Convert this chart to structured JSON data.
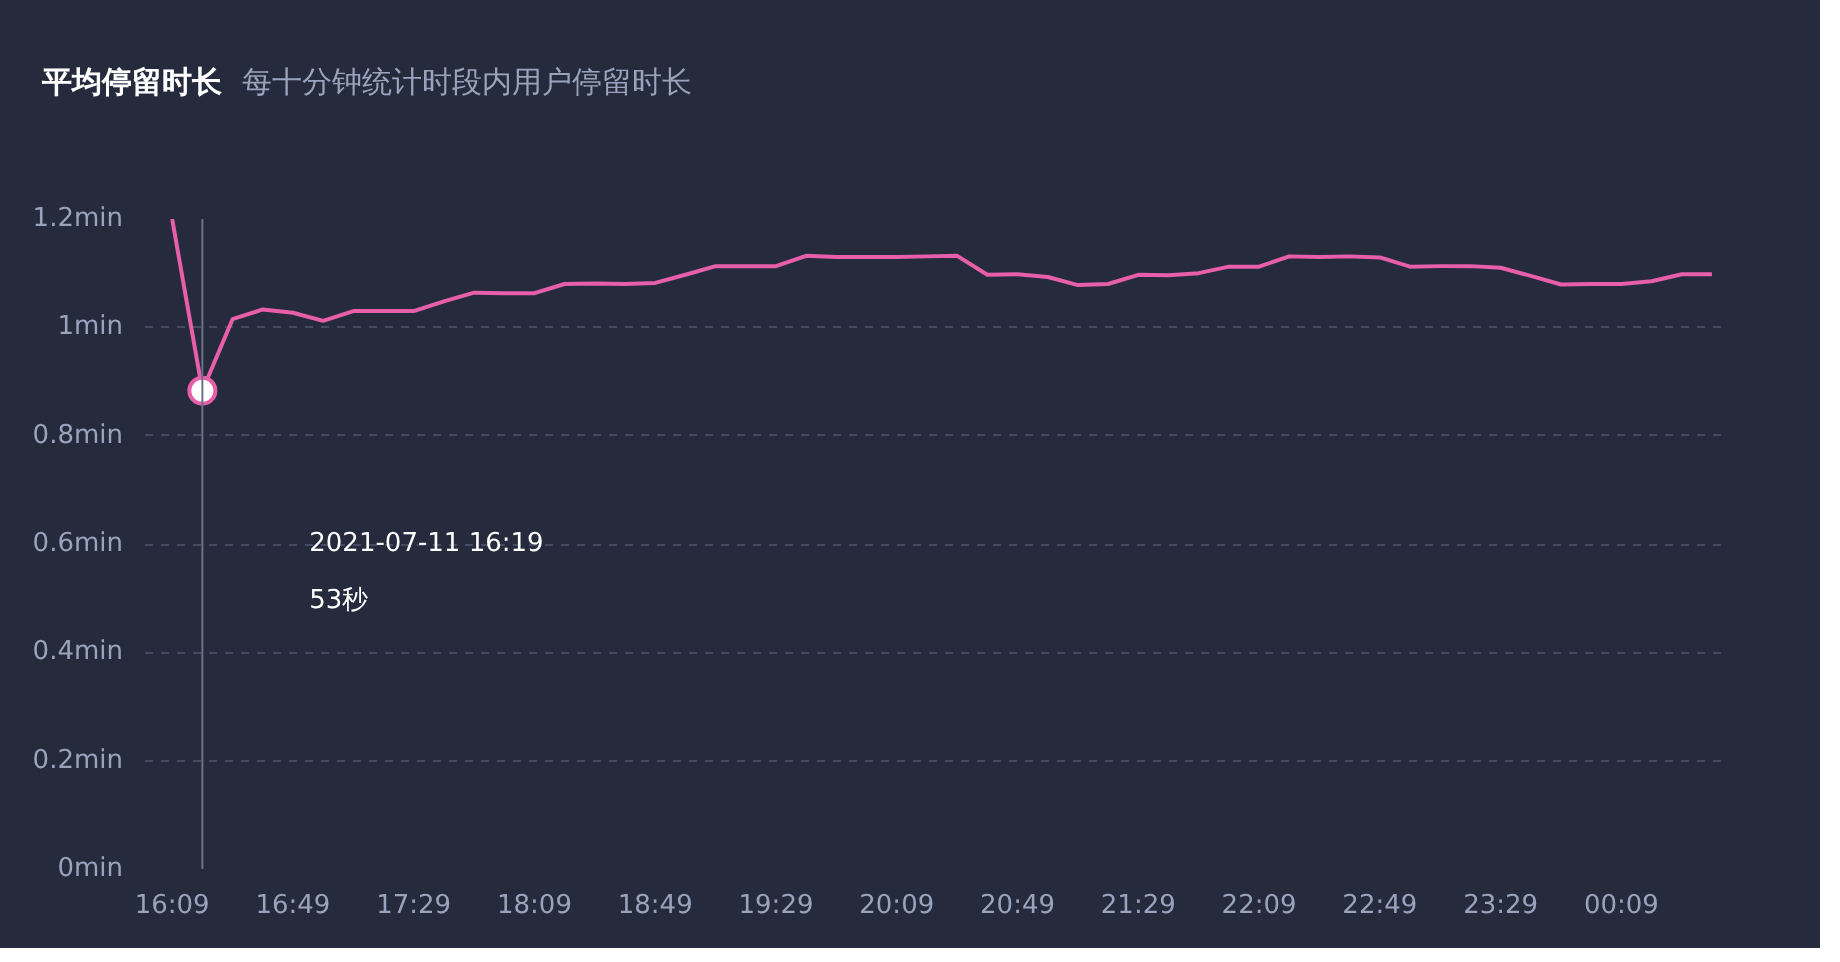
{
  "chart_data": {
    "type": "line",
    "title": "平均停留时长",
    "subtitle": "每十分钟统计时段内用户停留时长",
    "x": [
      "2021-07-11T16:09",
      "2021-07-11T16:19",
      "2021-07-11T16:29",
      "2021-07-11T16:39",
      "2021-07-11T16:49",
      "2021-07-11T16:59",
      "2021-07-11T17:09",
      "2021-07-11T17:19",
      "2021-07-11T17:29",
      "2021-07-11T17:39",
      "2021-07-11T17:49",
      "2021-07-11T17:59",
      "2021-07-11T18:09",
      "2021-07-11T18:19",
      "2021-07-11T18:29",
      "2021-07-11T18:39",
      "2021-07-11T18:49",
      "2021-07-11T18:59",
      "2021-07-11T19:09",
      "2021-07-11T19:19",
      "2021-07-11T19:29",
      "2021-07-11T19:39",
      "2021-07-11T19:49",
      "2021-07-11T19:59",
      "2021-07-11T20:09",
      "2021-07-11T20:19",
      "2021-07-11T20:29",
      "2021-07-11T20:39",
      "2021-07-11T20:49",
      "2021-07-11T20:59",
      "2021-07-11T21:09",
      "2021-07-11T21:19",
      "2021-07-11T21:29",
      "2021-07-11T21:39",
      "2021-07-11T21:49",
      "2021-07-11T21:59",
      "2021-07-11T22:09",
      "2021-07-11T22:19",
      "2021-07-11T22:29",
      "2021-07-11T22:39",
      "2021-07-11T22:49",
      "2021-07-11T22:59",
      "2021-07-11T23:09",
      "2021-07-11T23:19",
      "2021-07-11T23:29",
      "2021-07-11T23:39",
      "2021-07-11T23:49",
      "2021-07-11T23:59",
      "2021-07-12T00:09",
      "2021-07-12T00:19",
      "2021-07-12T00:29",
      "2021-07-12T00:39"
    ],
    "series": [
      {
        "color": "#e65fa8",
        "values": [
          1.2,
          0.883,
          1.015,
          1.033,
          1.027,
          1.012,
          1.03,
          1.03,
          1.03,
          1.048,
          1.064,
          1.063,
          1.063,
          1.08,
          1.081,
          1.08,
          1.082,
          1.097,
          1.113,
          1.113,
          1.113,
          1.132,
          1.13,
          1.13,
          1.13,
          1.131,
          1.132,
          1.097,
          1.098,
          1.093,
          1.078,
          1.08,
          1.097,
          1.096,
          1.1,
          1.112,
          1.112,
          1.131,
          1.13,
          1.131,
          1.129,
          1.112,
          1.113,
          1.113,
          1.11,
          1.095,
          1.079,
          1.08,
          1.08,
          1.085,
          1.098,
          1.098
        ]
      }
    ],
    "xlim": [
      "2021-07-11T16:00",
      "2021-07-12T00:42"
    ],
    "xticks": [
      {
        "value": "2021-07-11T16:09",
        "label": "16:09"
      },
      {
        "value": "2021-07-11T16:49",
        "label": "16:49"
      },
      {
        "value": "2021-07-11T17:29",
        "label": "17:29"
      },
      {
        "value": "2021-07-11T18:09",
        "label": "18:09"
      },
      {
        "value": "2021-07-11T18:49",
        "label": "18:49"
      },
      {
        "value": "2021-07-11T19:29",
        "label": "19:29"
      },
      {
        "value": "2021-07-11T20:09",
        "label": "20:09"
      },
      {
        "value": "2021-07-11T20:49",
        "label": "20:49"
      },
      {
        "value": "2021-07-11T21:29",
        "label": "21:29"
      },
      {
        "value": "2021-07-11T22:09",
        "label": "22:09"
      },
      {
        "value": "2021-07-11T22:49",
        "label": "22:49"
      },
      {
        "value": "2021-07-11T23:29",
        "label": "23:29"
      },
      {
        "value": "2021-07-12T00:09",
        "label": "00:09"
      }
    ],
    "ylim": [
      0,
      1.2
    ],
    "yticks": [
      {
        "value": 0,
        "label": "0min"
      },
      {
        "value": 0.2,
        "label": "0.2min"
      },
      {
        "value": 0.4,
        "label": "0.4min"
      },
      {
        "value": 0.6,
        "label": "0.6min"
      },
      {
        "value": 0.8,
        "label": "0.8min"
      },
      {
        "value": 1,
        "label": "1min"
      },
      {
        "value": 1.2,
        "label": "1.2min"
      }
    ],
    "grid": "y",
    "marker": "none",
    "line_style": "solid",
    "ref_lines": [
      {
        "axis": "x",
        "value": "2021-07-11T16:19",
        "color": "#6b7088"
      }
    ],
    "annotations": [
      "2021-07-11 16:19",
      "53秒"
    ]
  }
}
